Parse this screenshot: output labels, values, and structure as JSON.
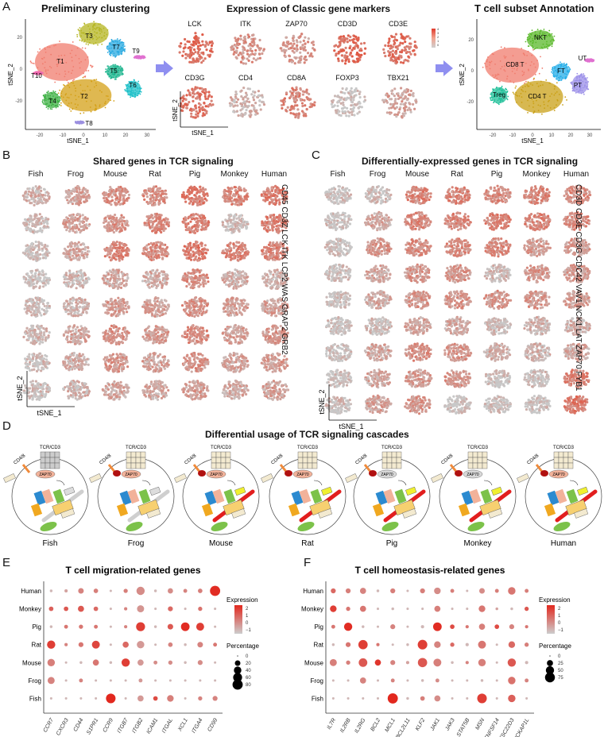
{
  "panelA": {
    "letter": "A",
    "clustering": {
      "title": "Preliminary clustering",
      "xlabel": "tSNE_1",
      "ylabel": "tSNE_2",
      "xticks": [
        "-20",
        "-10",
        "0",
        "10",
        "20",
        "30"
      ],
      "yticks": [
        "20",
        "0",
        "-20"
      ],
      "clusters": [
        {
          "label": "T1",
          "color": "#f07c6e"
        },
        {
          "label": "T2",
          "color": "#d4a017"
        },
        {
          "label": "T3",
          "color": "#b5b522"
        },
        {
          "label": "T4",
          "color": "#3cb043"
        },
        {
          "label": "T5",
          "color": "#1fb58f"
        },
        {
          "label": "T6",
          "color": "#1fc0c8"
        },
        {
          "label": "T7",
          "color": "#2aa9e0"
        },
        {
          "label": "T8",
          "color": "#9b8fe0"
        },
        {
          "label": "T9",
          "color": "#e070d0"
        },
        {
          "label": "T10",
          "color": "#f06bb0"
        }
      ]
    },
    "markers": {
      "title": "Expression of Classic gene markers",
      "genes_row1": [
        "LCK",
        "ITK",
        "ZAP70",
        "CD3D",
        "CD3E"
      ],
      "genes_row2": [
        "CD3G",
        "CD4",
        "CD8A",
        "FOXP3",
        "TBX21"
      ],
      "xlabel": "tSNE_1",
      "ylabel": "tSNE_2",
      "legend_ticks": [
        "4",
        "3",
        "2",
        "1",
        "0"
      ]
    },
    "annotation": {
      "title": "T cell subset Annotation",
      "xlabel": "tSNE_1",
      "ylabel": "tSNE_2",
      "xticks": [
        "-20",
        "-10",
        "0",
        "10",
        "20",
        "30"
      ],
      "yticks": [
        "20",
        "0",
        "-20"
      ],
      "subsets": [
        {
          "label": "NKT",
          "color": "#5ab82a"
        },
        {
          "label": "CD8 T",
          "color": "#f07c6e"
        },
        {
          "label": "FT",
          "color": "#25aee8"
        },
        {
          "label": "UT",
          "color": "#e070d0"
        },
        {
          "label": "PT",
          "color": "#9b8fe8"
        },
        {
          "label": "Treg",
          "color": "#21c09a"
        },
        {
          "label": "CD4 T",
          "color": "#c9a017"
        }
      ]
    }
  },
  "panelB": {
    "letter": "B",
    "title": "Shared genes in TCR signaling",
    "species": [
      "Fish",
      "Frog",
      "Mouse",
      "Rat",
      "Pig",
      "Monkey",
      "Human"
    ],
    "genes": [
      "CD45",
      "CD3Z",
      "LCK",
      "ITK",
      "LCP2",
      "WAS",
      "GRAP2",
      "GRB2"
    ],
    "xlabel": "tSNE_1",
    "ylabel": "tSNE_2"
  },
  "panelC": {
    "letter": "C",
    "title": "Differentially-expressed genes in TCR signaling",
    "species": [
      "Fish",
      "Frog",
      "Mouse",
      "Rat",
      "Pig",
      "Monkey",
      "Human"
    ],
    "genes": [
      "CD3D",
      "CD3E",
      "CD3G",
      "CDC42",
      "VAV1",
      "NCK1",
      "LAT",
      "ZAP70",
      "FYB1"
    ],
    "xlabel": "tSNE_1",
    "ylabel": "tSNE_2"
  },
  "panelD": {
    "letter": "D",
    "title": "Differential usage of TCR signaling cascades",
    "species": [
      "Fish",
      "Frog",
      "Mouse",
      "Rat",
      "Pig",
      "Monkey",
      "Human"
    ],
    "labels": {
      "tcr": "TCR/CD3",
      "cd48": "CD4/8",
      "zap70": "ZAP70",
      "lck": "LCK",
      "skap": "SKAP",
      "itk": "ITK",
      "vav1": "VAV1",
      "cdc42": "CDC42",
      "nck": "NCK",
      "wasp": "WASP",
      "gads": "GADS",
      "slp76": "SLP76",
      "plcg1": "PLCg1",
      "grb2": "GRB2",
      "lat": "LAT"
    }
  },
  "chart_data": [
    {
      "type": "scatter",
      "subtype": "dotplot",
      "panel": "E",
      "title": "T cell migration-related genes",
      "categories_x": [
        "CCR7",
        "CXCR3",
        "CD44",
        "S1PR1",
        "CCR9",
        "ITGB7",
        "ITGB2",
        "ICAM1",
        "ITGAL",
        "XCL1",
        "ITGA4",
        "CD99"
      ],
      "categories_y": [
        "Human",
        "Monkey",
        "Pig",
        "Rat",
        "Mouse",
        "Frog",
        "Fish"
      ],
      "legend_expression": {
        "title": "Expression",
        "ticks": [
          "2",
          "1",
          "0",
          "−1"
        ],
        "range": [
          -1.5,
          2.3
        ]
      },
      "legend_percentage": {
        "title": "Percentage",
        "ticks": [
          "0",
          "20",
          "40",
          "60",
          "80"
        ]
      },
      "series": [
        {
          "name": "Human",
          "pct": [
            3,
            5,
            20,
            12,
            2,
            10,
            50,
            3,
            18,
            8,
            12,
            80
          ],
          "expr": [
            -1,
            -0.5,
            0.2,
            0.3,
            -1,
            0.3,
            0,
            -1,
            0,
            0.2,
            0.3,
            2.2
          ]
        },
        {
          "name": "Monkey",
          "pct": [
            12,
            12,
            25,
            12,
            2,
            5,
            35,
            2,
            15,
            2,
            10,
            2
          ],
          "expr": [
            1,
            1.2,
            1.2,
            0.8,
            -1,
            0.2,
            -0.2,
            -1,
            0.8,
            -1,
            0.6,
            -1
          ]
        },
        {
          "name": "Pig",
          "pct": [
            3,
            8,
            10,
            8,
            2,
            5,
            60,
            3,
            20,
            55,
            45,
            2
          ],
          "expr": [
            -1,
            0.5,
            0.5,
            0.5,
            -1,
            0.2,
            1.8,
            -1,
            1.2,
            2.2,
            1.8,
            -1
          ]
        },
        {
          "name": "Rat",
          "pct": [
            50,
            5,
            15,
            45,
            2,
            25,
            40,
            2,
            12,
            3,
            20,
            8
          ],
          "expr": [
            1.8,
            0.2,
            0.5,
            1.6,
            -1,
            0.8,
            -0.3,
            -1,
            0.2,
            -1,
            0.2,
            0.5
          ]
        },
        {
          "name": "Mouse",
          "pct": [
            40,
            2,
            3,
            25,
            3,
            50,
            25,
            8,
            10,
            3,
            15,
            2
          ],
          "expr": [
            0.3,
            -1,
            -1,
            0.5,
            -1,
            1.8,
            -0.3,
            0,
            0,
            -1,
            0,
            -1
          ]
        },
        {
          "name": "Frog",
          "pct": [
            35,
            2,
            8,
            2,
            2,
            2,
            8,
            2,
            2,
            2,
            2,
            2
          ],
          "expr": [
            0.2,
            -1,
            0.2,
            -1,
            -1,
            -1,
            -0.3,
            -1,
            -1,
            -1,
            -1,
            -1
          ]
        },
        {
          "name": "Fish",
          "pct": [
            2,
            2,
            2,
            2,
            70,
            2,
            25,
            12,
            30,
            2,
            10,
            15
          ],
          "expr": [
            -1,
            -1,
            -1,
            -1,
            2.3,
            -1,
            -0.3,
            1.5,
            0.3,
            -1,
            0.2,
            0.2
          ]
        }
      ]
    },
    {
      "type": "scatter",
      "subtype": "dotplot",
      "panel": "F",
      "title": "T cell homeostasis-related genes",
      "categories_x": [
        "IL7R",
        "IL2RB",
        "IL2RG",
        "BCL2",
        "MCL1",
        "BCL2L11",
        "KLF2",
        "JAK1",
        "JAK3",
        "STAT5B",
        "MSN",
        "TNFSF14",
        "TSC22D3",
        "NCKAP1L"
      ],
      "categories_y": [
        "Human",
        "Monkey",
        "Pig",
        "Rat",
        "Mouse",
        "Frog",
        "Fish"
      ],
      "legend_expression": {
        "title": "Expression",
        "ticks": [
          "2",
          "1",
          "0",
          "−1"
        ],
        "range": [
          -1.5,
          2.3
        ]
      },
      "legend_percentage": {
        "title": "Percentage",
        "ticks": [
          "0",
          "25",
          "50",
          "75"
        ]
      },
      "series": [
        {
          "name": "Human",
          "pct": [
            15,
            15,
            25,
            3,
            15,
            2,
            15,
            30,
            8,
            2,
            20,
            8,
            40,
            8
          ],
          "expr": [
            0.8,
            0.3,
            0.2,
            -1,
            0.3,
            -1,
            0.3,
            0,
            0.3,
            -1,
            0,
            0.3,
            0.5,
            0.3
          ]
        },
        {
          "name": "Monkey",
          "pct": [
            30,
            10,
            25,
            2,
            3,
            2,
            2,
            25,
            2,
            2,
            30,
            3,
            3,
            10
          ],
          "expr": [
            1.8,
            0.5,
            0.5,
            -1,
            -1,
            -1,
            -1,
            0.3,
            -1,
            -1,
            0.5,
            -0.5,
            -1,
            1.2
          ]
        },
        {
          "name": "Pig",
          "pct": [
            8,
            50,
            3,
            2,
            15,
            2,
            5,
            55,
            12,
            5,
            25,
            12,
            15,
            5
          ],
          "expr": [
            0.5,
            2.2,
            -1,
            -1,
            0.2,
            -1,
            -1,
            2.2,
            1.5,
            0.5,
            0.3,
            1.5,
            0.2,
            0.5
          ]
        },
        {
          "name": "Rat",
          "pct": [
            3,
            15,
            65,
            5,
            2,
            3,
            70,
            30,
            10,
            5,
            45,
            2,
            30,
            10
          ],
          "expr": [
            -1,
            0.5,
            1.8,
            0.5,
            -1,
            -1,
            1.8,
            0.2,
            0.8,
            -1,
            0.5,
            -1,
            0.8,
            0.3
          ]
        },
        {
          "name": "Mouse",
          "pct": [
            35,
            10,
            55,
            25,
            15,
            5,
            65,
            45,
            3,
            5,
            40,
            2,
            50,
            5
          ],
          "expr": [
            0.3,
            0.3,
            1.2,
            2.0,
            0.2,
            -0.5,
            1.2,
            0.3,
            -1,
            0.2,
            0.3,
            -1,
            1.2,
            -1
          ]
        },
        {
          "name": "Frog",
          "pct": [
            2,
            2,
            25,
            2,
            8,
            2,
            3,
            8,
            2,
            2,
            3,
            2,
            40,
            8
          ],
          "expr": [
            -1,
            -1,
            0.2,
            -1,
            0.2,
            -1,
            -1,
            0,
            -1,
            -1,
            -1,
            -1,
            0.6,
            0.2
          ]
        },
        {
          "name": "Fish",
          "pct": [
            2,
            2,
            2,
            2,
            80,
            3,
            12,
            25,
            2,
            2,
            70,
            2,
            40,
            2
          ],
          "expr": [
            -1,
            -1,
            -1,
            -1,
            2.3,
            -1,
            0.3,
            0,
            -1,
            -1,
            1.8,
            -1,
            1.0,
            -1
          ]
        }
      ]
    }
  ]
}
